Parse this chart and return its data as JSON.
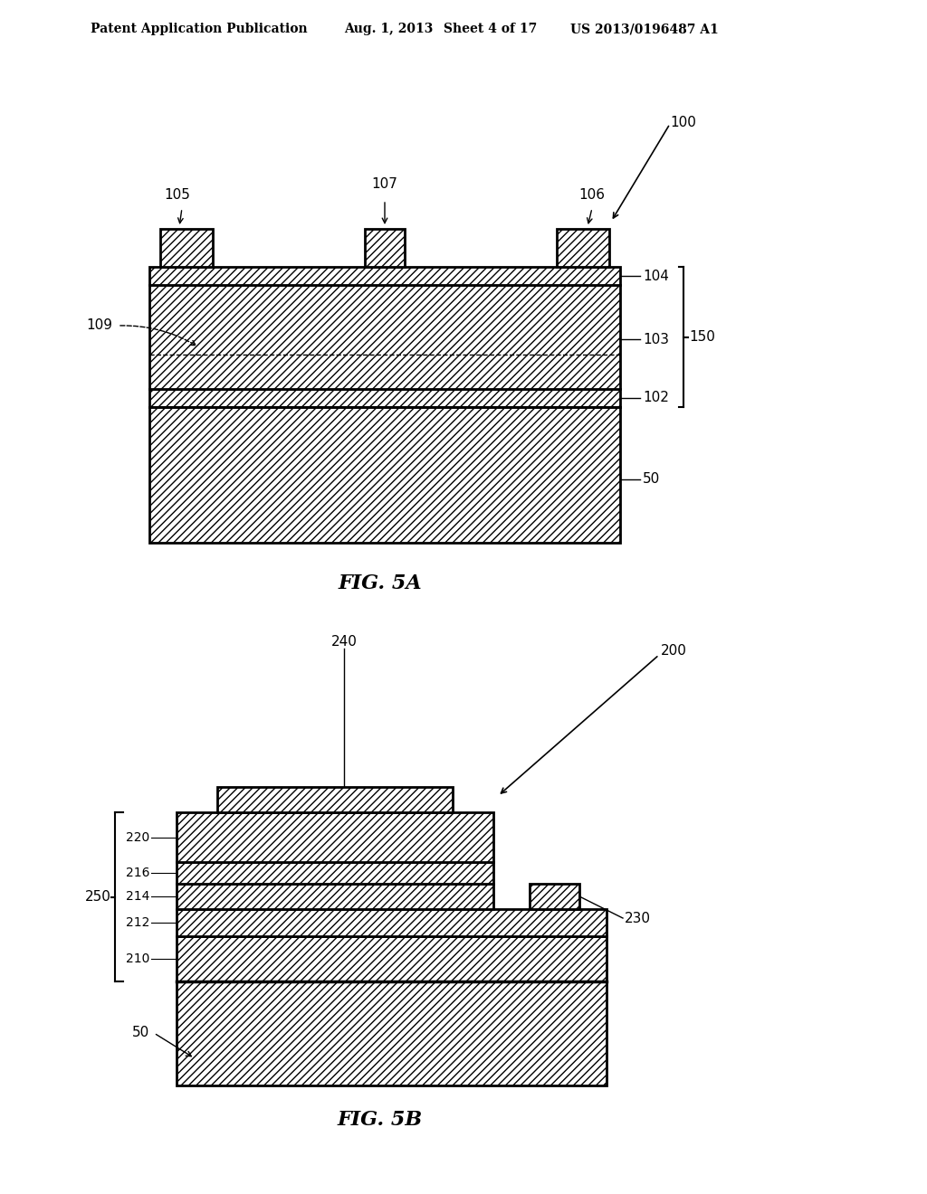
{
  "bg_color": "#ffffff",
  "header_text1": "Patent Application Publication",
  "header_text2": "Aug. 1, 2013",
  "header_text3": "Sheet 4 of 17",
  "header_text4": "US 2013/0196487 A1",
  "fig5a_label": "FIG. 5A",
  "fig5b_label": "FIG. 5B"
}
